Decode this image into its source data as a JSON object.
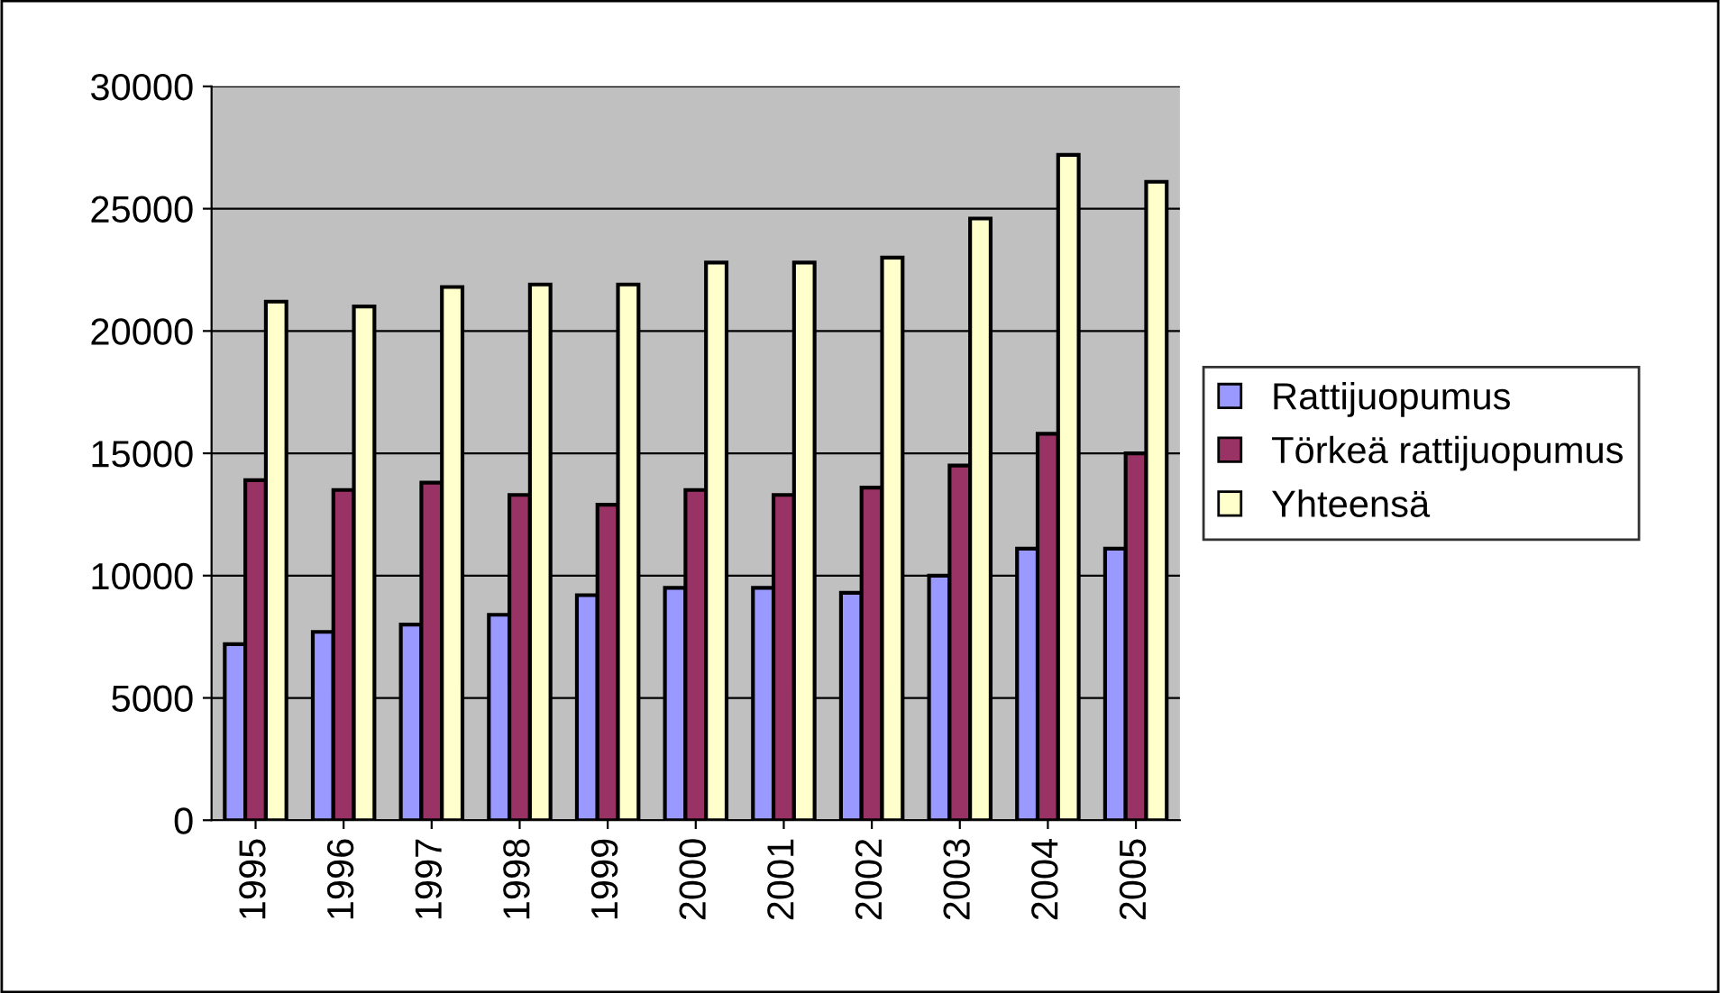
{
  "chart_data": {
    "type": "bar",
    "categories": [
      "1995",
      "1996",
      "1997",
      "1998",
      "1999",
      "2000",
      "2001",
      "2002",
      "2003",
      "2004",
      "2005"
    ],
    "series": [
      {
        "name": "Rattijuopumus",
        "color": "#9999ff",
        "values": [
          7200,
          7700,
          8000,
          8400,
          9200,
          9500,
          9500,
          9300,
          10000,
          11100,
          11100
        ]
      },
      {
        "name": "Törkeä rattijuopumus",
        "color": "#993366",
        "values": [
          13900,
          13500,
          13800,
          13300,
          12900,
          13500,
          13300,
          13600,
          14500,
          15800,
          15000
        ]
      },
      {
        "name": "Yhteensä",
        "color": "#ffffcc",
        "values": [
          21200,
          21000,
          21800,
          21900,
          21900,
          22800,
          22800,
          23000,
          24600,
          27200,
          26100
        ]
      }
    ],
    "ylim": [
      0,
      30000
    ],
    "yticks": [
      0,
      5000,
      10000,
      15000,
      20000,
      25000,
      30000
    ],
    "grid": "y",
    "legend": "right"
  }
}
